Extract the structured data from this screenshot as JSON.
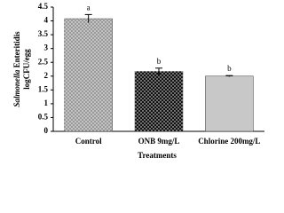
{
  "chart_data": {
    "type": "bar",
    "categories": [
      "Control",
      "ONB 9mg/L",
      "Chlorine 200mg/L"
    ],
    "values": [
      4.08,
      2.17,
      2.0
    ],
    "errors": [
      0.15,
      0.12,
      0.02
    ],
    "annotations": [
      "a",
      "b",
      "b"
    ],
    "colors": [
      "#9a9a9a",
      "#111111",
      "#c8c8c8"
    ],
    "patterns": [
      "dots",
      "dots",
      "none"
    ],
    "xlabel": "Treatments",
    "ylabel": [
      "Salmonella",
      "Enteritidis",
      "logCFU/egg"
    ],
    "ylim": [
      0,
      4.5
    ],
    "yticks": [
      0,
      0.5,
      1,
      1.5,
      2,
      2.5,
      3,
      3.5,
      4,
      4.5
    ]
  }
}
